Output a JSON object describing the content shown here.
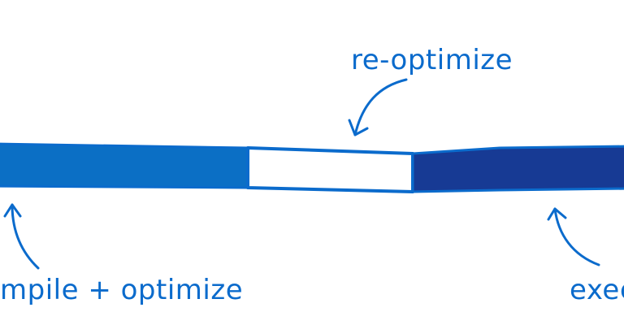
{
  "labels": {
    "reoptimize": "re-optimize",
    "compile_optimize": "mpile + optimize",
    "execute": "exec"
  },
  "colors": {
    "stroke": "#0b6bcc",
    "segment_compile": "#0b6fc5",
    "segment_reoptimize": "#ffffff",
    "segment_execute": "#173a94",
    "text": "#0b6bcc"
  }
}
